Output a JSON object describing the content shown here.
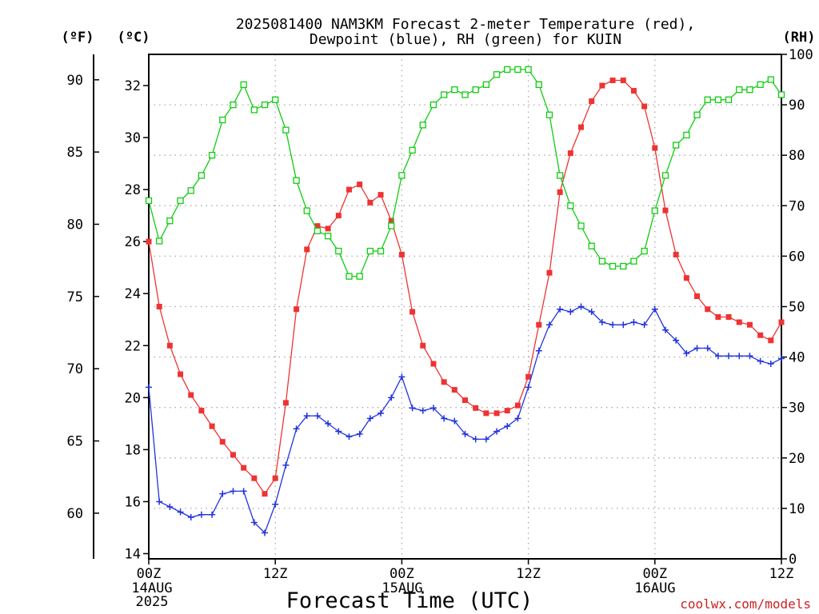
{
  "header": {
    "title_line1": "2025081400 NAM3KM Forecast 2-meter Temperature (red),",
    "title_line2": "Dewpoint (blue), RH (green) for KUIN",
    "unit_f": "(ºF)",
    "unit_c": "(ºC)",
    "unit_rh": "(RH)"
  },
  "footer": {
    "xlabel": "Forecast Time (UTC)",
    "credit": "coolwx.com/models",
    "date_label_1": "14AUG",
    "date_label_year": "2025",
    "date_label_2": "15AUG",
    "date_label_3": "16AUG"
  },
  "colors": {
    "temperature": "#ee3333",
    "dewpoint": "#2233dd",
    "rh": "#11cc11",
    "grid": "#aaaaaa",
    "credit": "#cc2222"
  },
  "chart_data": {
    "type": "line",
    "title": "2025081400 NAM3KM Forecast 2-meter Temperature (red), Dewpoint (blue), RH (green) for KUIN",
    "xlabel": "Forecast Time (UTC)",
    "x_unit": "forecast hour from 2025-08-14 00Z",
    "x": [
      0,
      1,
      2,
      3,
      4,
      5,
      6,
      7,
      8,
      9,
      10,
      11,
      12,
      13,
      14,
      15,
      16,
      17,
      18,
      19,
      20,
      21,
      22,
      23,
      24,
      25,
      26,
      27,
      28,
      29,
      30,
      31,
      32,
      33,
      34,
      35,
      36,
      37,
      38,
      39,
      40,
      41,
      42,
      43,
      44,
      45,
      46,
      47,
      48,
      49,
      50,
      51,
      52,
      53,
      54,
      55,
      56,
      57,
      58,
      59,
      60
    ],
    "xlim": [
      0,
      60
    ],
    "x_ticks": [
      {
        "x": 0,
        "label": "00Z"
      },
      {
        "x": 12,
        "label": "12Z"
      },
      {
        "x": 24,
        "label": "00Z"
      },
      {
        "x": 36,
        "label": "12Z"
      },
      {
        "x": 48,
        "label": "00Z"
      },
      {
        "x": 60,
        "label": "12Z"
      }
    ],
    "y_left_celsius": {
      "label": "(ºC)",
      "ylim": [
        13.8,
        33.2
      ],
      "ticks": [
        14,
        16,
        18,
        20,
        22,
        24,
        26,
        28,
        30,
        32
      ]
    },
    "y_left_fahrenheit": {
      "label": "(ºF)",
      "ticks": [
        60,
        65,
        70,
        75,
        80,
        85,
        90
      ]
    },
    "y_right_rh": {
      "label": "(RH)",
      "ylim": [
        0,
        100
      ],
      "ticks": [
        0,
        10,
        20,
        30,
        40,
        50,
        60,
        70,
        80,
        90,
        100
      ]
    },
    "grid": true,
    "series": [
      {
        "name": "Temperature (red)",
        "axis": "celsius",
        "marker": "filled-square",
        "values": [
          26.0,
          23.5,
          22.0,
          20.9,
          20.1,
          19.5,
          18.9,
          18.3,
          17.8,
          17.3,
          16.9,
          16.3,
          16.9,
          19.8,
          23.4,
          25.7,
          26.6,
          26.5,
          27.0,
          28.0,
          28.2,
          27.5,
          27.8,
          26.8,
          25.5,
          23.3,
          22.0,
          21.3,
          20.6,
          20.3,
          19.9,
          19.6,
          19.4,
          19.4,
          19.5,
          19.7,
          20.8,
          22.8,
          24.8,
          27.9,
          29.4,
          30.4,
          31.4,
          32.0,
          32.2,
          32.2,
          31.8,
          31.2,
          29.6,
          27.2,
          25.5,
          24.6,
          23.9,
          23.4,
          23.1,
          23.1,
          22.9,
          22.8,
          22.4,
          22.2,
          22.9
        ]
      },
      {
        "name": "Dewpoint (blue)",
        "axis": "celsius",
        "marker": "plus",
        "values": [
          20.4,
          16.0,
          15.8,
          15.6,
          15.4,
          15.5,
          15.5,
          16.3,
          16.4,
          16.4,
          15.2,
          14.8,
          15.9,
          17.4,
          18.8,
          19.3,
          19.3,
          19.0,
          18.7,
          18.5,
          18.6,
          19.2,
          19.4,
          20.0,
          20.8,
          19.6,
          19.5,
          19.6,
          19.2,
          19.1,
          18.6,
          18.4,
          18.4,
          18.7,
          18.9,
          19.2,
          20.4,
          21.8,
          22.8,
          23.4,
          23.3,
          23.5,
          23.3,
          22.9,
          22.8,
          22.8,
          22.9,
          22.8,
          23.4,
          22.6,
          22.2,
          21.7,
          21.9,
          21.9,
          21.6,
          21.6,
          21.6,
          21.6,
          21.4,
          21.3,
          21.5
        ]
      },
      {
        "name": "RH (green)",
        "axis": "rh",
        "marker": "open-square",
        "values": [
          71,
          63,
          67,
          71,
          73,
          76,
          80,
          87,
          90,
          94,
          89,
          90,
          91,
          85,
          75,
          69,
          65,
          64,
          61,
          56,
          56,
          61,
          61,
          66,
          76,
          81,
          86,
          90,
          92,
          93,
          92,
          93,
          94,
          96,
          97,
          97,
          97,
          94,
          88,
          76,
          70,
          66,
          62,
          59,
          58,
          58,
          59,
          61,
          69,
          76,
          82,
          84,
          88,
          91,
          91,
          91,
          93,
          93,
          94,
          95,
          92
        ]
      }
    ]
  }
}
